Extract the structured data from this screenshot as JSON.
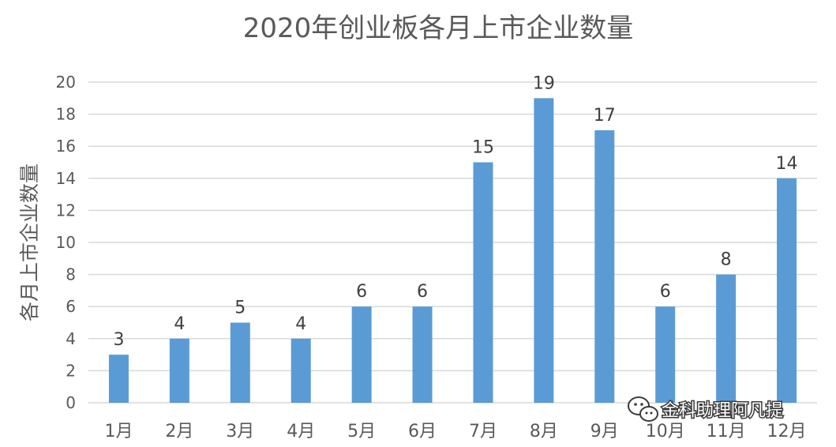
{
  "chart_data": {
    "type": "bar",
    "title": "2020年创业板各月上市企业数量",
    "ylabel": "各月上市企业数量",
    "xlabel": "",
    "categories": [
      "1月",
      "2月",
      "3月",
      "4月",
      "5月",
      "6月",
      "7月",
      "8月",
      "9月",
      "10月",
      "11月",
      "12月"
    ],
    "values": [
      3,
      4,
      5,
      4,
      6,
      6,
      15,
      19,
      17,
      6,
      8,
      14
    ],
    "ylim": [
      0,
      20
    ],
    "yticks": [
      "0",
      "2",
      "4",
      "6",
      "8",
      "10",
      "12",
      "14",
      "16",
      "18",
      "20"
    ],
    "data_labels": [
      "3",
      "4",
      "5",
      "4",
      "6",
      "6",
      "15",
      "19",
      "17",
      "6",
      "8",
      "14"
    ],
    "grid": true,
    "legend": "none",
    "colors": {
      "bar": "#5b9bd5",
      "grid": "#d9d9d9",
      "text": "#595959"
    }
  },
  "watermark": {
    "text": "金科助理阿凡提",
    "icon": "wechat-icon"
  }
}
